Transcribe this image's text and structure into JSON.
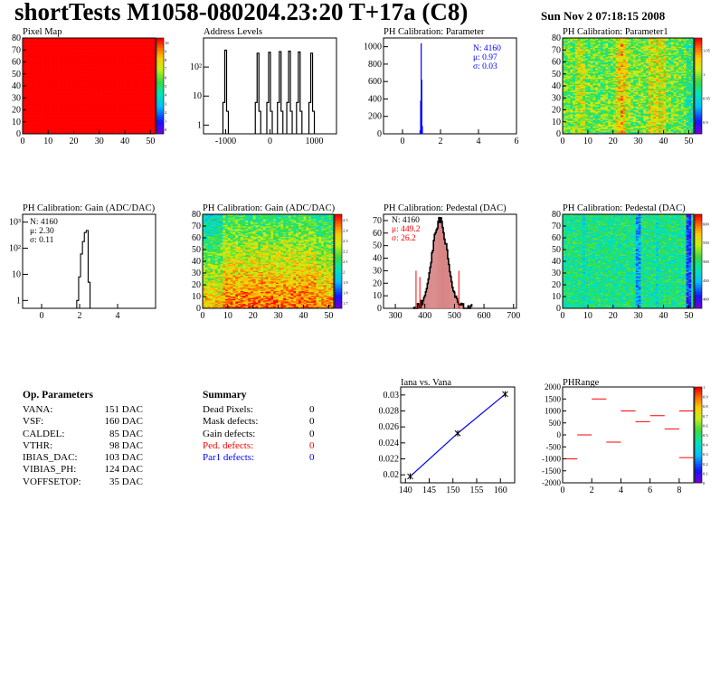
{
  "header": {
    "title": "shortTests M1058-080204.23:20 T+17a (C8)",
    "date": "Sun Nov  2 07:18:15 2008"
  },
  "colors": {
    "red": "#ff0000",
    "blue": "#0000ff",
    "hist_fill_red": "#c04040"
  },
  "chart_data": [
    {
      "id": "pixel-map",
      "type": "heatmap",
      "title": "Pixel Map",
      "xlim": [
        0,
        52
      ],
      "ylim": [
        0,
        80
      ],
      "xticks": [
        0,
        10,
        20,
        30,
        40,
        50
      ],
      "yticks": [
        0,
        10,
        20,
        30,
        40,
        50,
        60,
        70,
        80
      ],
      "fill_value": 10,
      "zlim": [
        0,
        10
      ],
      "z_tick_labels": [
        "0",
        "1",
        "2",
        "3",
        "4",
        "5",
        "6",
        "7",
        "8",
        "9",
        "10"
      ]
    },
    {
      "id": "address-levels",
      "type": "bar",
      "title": "Address Levels",
      "log_y": true,
      "xlim": [
        -1500,
        1500
      ],
      "ylim_exp": [
        -0.3,
        3
      ],
      "xtick_labels": [
        {
          "v": -1000,
          "label": "-1000"
        },
        {
          "v": 0,
          "label": "0"
        },
        {
          "v": 1000,
          "label": "1000"
        }
      ],
      "ytick_labels": [
        {
          "e": 0,
          "label": "1"
        },
        {
          "e": 1,
          "label": "10"
        },
        {
          "e": 2,
          "label": "10²"
        }
      ],
      "peaks": [
        {
          "x": -980,
          "y": 380
        },
        {
          "x": -250,
          "y": 300
        },
        {
          "x": 10,
          "y": 320
        },
        {
          "x": 250,
          "y": 340
        },
        {
          "x": 460,
          "y": 350
        },
        {
          "x": 680,
          "y": 330
        },
        {
          "x": 960,
          "y": 300
        }
      ]
    },
    {
      "id": "ph-cal-parameter",
      "type": "bar",
      "title": "PH Calibration: Parameter",
      "xlim": [
        -1,
        6
      ],
      "ylim": [
        0,
        1100
      ],
      "xtick_labels": [
        {
          "v": 0,
          "label": "0"
        },
        {
          "v": 2,
          "label": "2"
        },
        {
          "v": 4,
          "label": "4"
        },
        {
          "v": 6,
          "label": "6"
        }
      ],
      "ytick_labels": [
        {
          "v": 0,
          "label": "0"
        },
        {
          "v": 200,
          "label": "200"
        },
        {
          "v": 400,
          "label": "400"
        },
        {
          "v": 600,
          "label": "600"
        },
        {
          "v": 800,
          "label": "800"
        },
        {
          "v": 1000,
          "label": "1000"
        }
      ],
      "stats": [
        "N: 4160",
        "μ: 0.97",
        "σ: 0.03"
      ],
      "bins": [
        {
          "x": 0.92,
          "y": 40
        },
        {
          "x": 0.95,
          "y": 380
        },
        {
          "x": 0.98,
          "y": 1040
        },
        {
          "x": 1.01,
          "y": 620
        },
        {
          "x": 1.04,
          "y": 90
        }
      ]
    },
    {
      "id": "ph-cal-parameter1",
      "type": "heatmap",
      "title": "PH Calibration: Parameter1",
      "xlim": [
        0,
        52
      ],
      "ylim": [
        0,
        80
      ],
      "xticks": [
        0,
        10,
        20,
        30,
        40,
        50
      ],
      "yticks": [
        0,
        10,
        20,
        30,
        40,
        50,
        60,
        70,
        80
      ],
      "z_tick_labels": [
        "0.9",
        "0.95",
        "1",
        "1.05"
      ]
    },
    {
      "id": "ph-cal-gain-1d",
      "type": "bar",
      "title": "PH Calibration: Gain (ADC/DAC)",
      "log_y": true,
      "xlim": [
        -1,
        6
      ],
      "ylim_exp": [
        -0.3,
        3.3
      ],
      "xtick_labels": [
        {
          "v": 0,
          "label": "0"
        },
        {
          "v": 2,
          "label": "2"
        },
        {
          "v": 4,
          "label": "4"
        }
      ],
      "ytick_labels": [
        {
          "e": 0,
          "label": "1"
        },
        {
          "e": 1,
          "label": "10"
        },
        {
          "e": 2,
          "label": "10²"
        },
        {
          "e": 3,
          "label": "10³"
        }
      ],
      "stats": [
        "N: 4160",
        "μ: 2.30",
        "σ: 0.11"
      ],
      "bins": [
        {
          "x": 1.9,
          "y": 1
        },
        {
          "x": 2.0,
          "y": 8
        },
        {
          "x": 2.1,
          "y": 60
        },
        {
          "x": 2.2,
          "y": 180
        },
        {
          "x": 2.3,
          "y": 400
        },
        {
          "x": 2.4,
          "y": 480
        },
        {
          "x": 2.5,
          "y": 5
        }
      ]
    },
    {
      "id": "ph-cal-gain-2d",
      "type": "heatmap",
      "title": "PH Calibration: Gain (ADC/DAC)",
      "xlim": [
        0,
        52
      ],
      "ylim": [
        0,
        80
      ],
      "xticks": [
        0,
        10,
        20,
        30,
        40,
        50
      ],
      "yticks": [
        0,
        10,
        20,
        30,
        40,
        50,
        60,
        70,
        80
      ],
      "z_tick_labels": [
        "1.7",
        "1.8",
        "1.9",
        "2",
        "2.1",
        "2.2",
        "2.3",
        "2.4",
        "2.5"
      ]
    },
    {
      "id": "ph-cal-pedestal-1d",
      "type": "bar",
      "title": "PH Calibration: Pedestal (DAC)",
      "xlim": [
        260,
        710
      ],
      "ylim": [
        0,
        75
      ],
      "xtick_labels": [
        {
          "v": 300,
          "label": "300"
        },
        {
          "v": 400,
          "label": "400"
        },
        {
          "v": 500,
          "label": "500"
        },
        {
          "v": 600,
          "label": "600"
        },
        {
          "v": 700,
          "label": "700"
        }
      ],
      "ytick_labels": [
        {
          "v": 0,
          "label": "0"
        },
        {
          "v": 10,
          "label": "10"
        },
        {
          "v": 20,
          "label": "20"
        },
        {
          "v": 30,
          "label": "30"
        },
        {
          "v": 40,
          "label": "40"
        },
        {
          "v": 50,
          "label": "50"
        },
        {
          "v": 60,
          "label": "60"
        },
        {
          "v": 70,
          "label": "70"
        }
      ],
      "stats_black": [
        "N: 4160"
      ],
      "stats_red": [
        "μ: 449.2",
        "σ: 26.2"
      ],
      "cut_lines": [
        370,
        383,
        515
      ],
      "gauss": {
        "mean": 449,
        "sigma": 26,
        "peak": 70
      }
    },
    {
      "id": "ph-cal-pedestal-2d",
      "type": "heatmap",
      "title": "PH Calibration: Pedestal (DAC)",
      "xlim": [
        0,
        52
      ],
      "ylim": [
        0,
        80
      ],
      "xticks": [
        0,
        10,
        20,
        30,
        40,
        50
      ],
      "yticks": [
        0,
        10,
        20,
        30,
        40,
        50,
        60,
        70,
        80
      ],
      "z_tick_labels": [
        "400",
        "450",
        "500",
        "550",
        "600"
      ]
    },
    {
      "id": "iana-vs-vana",
      "type": "line",
      "title": "Iana vs. Vana",
      "xlim": [
        139,
        163
      ],
      "ylim": [
        0.019,
        0.031
      ],
      "xtick_labels": [
        {
          "v": 140,
          "label": "140"
        },
        {
          "v": 145,
          "label": "145"
        },
        {
          "v": 150,
          "label": "150"
        },
        {
          "v": 155,
          "label": "155"
        },
        {
          "v": 160,
          "label": "160"
        }
      ],
      "ytick_labels": [
        {
          "v": 0.02,
          "label": "0.02"
        },
        {
          "v": 0.022,
          "label": "0.022"
        },
        {
          "v": 0.024,
          "label": "0.024"
        },
        {
          "v": 0.026,
          "label": "0.026"
        },
        {
          "v": 0.028,
          "label": "0.028"
        },
        {
          "v": 0.03,
          "label": "0.03"
        }
      ],
      "points": [
        {
          "x": 141,
          "y": 0.0198
        },
        {
          "x": 151,
          "y": 0.0252
        },
        {
          "x": 161,
          "y": 0.0301
        }
      ]
    },
    {
      "id": "phrange",
      "type": "scatter",
      "title": "PHRange",
      "xlim": [
        0,
        9
      ],
      "ylim": [
        -2000,
        2000
      ],
      "xtick_labels": [
        {
          "v": 0,
          "label": "0"
        },
        {
          "v": 2,
          "label": "2"
        },
        {
          "v": 4,
          "label": "4"
        },
        {
          "v": 6,
          "label": "6"
        },
        {
          "v": 8,
          "label": "8"
        }
      ],
      "ytick_labels": [
        {
          "v": 2000,
          "label": "2000"
        },
        {
          "v": 1500,
          "label": "1500"
        },
        {
          "v": 1000,
          "label": "1000"
        },
        {
          "v": 500,
          "label": "500"
        },
        {
          "v": 0,
          "label": "0"
        },
        {
          "v": -500,
          "label": "-500"
        },
        {
          "v": -1000,
          "label": "-1000"
        },
        {
          "v": -1500,
          "label": "-1500"
        },
        {
          "v": -2000,
          "label": "-2000"
        }
      ],
      "z_tick_labels": [
        "0",
        "0.1",
        "0.2",
        "0.3",
        "0.4",
        "0.5",
        "0.6",
        "0.7",
        "0.8",
        "0.9",
        "1"
      ],
      "segments": [
        {
          "x": 0,
          "y": -1000
        },
        {
          "x": 1,
          "y": 0
        },
        {
          "x": 2,
          "y": 1500
        },
        {
          "x": 3,
          "y": -300
        },
        {
          "x": 4,
          "y": 1000
        },
        {
          "x": 5,
          "y": 550
        },
        {
          "x": 6,
          "y": 800
        },
        {
          "x": 7,
          "y": 250
        },
        {
          "x": 8,
          "y": 1000
        },
        {
          "x": 8,
          "y": -950
        }
      ]
    }
  ],
  "op_parameters": {
    "heading": "Op. Parameters",
    "rows": [
      {
        "name": "VANA:",
        "value": "151 DAC"
      },
      {
        "name": "VSF:",
        "value": "160 DAC"
      },
      {
        "name": "CALDEL:",
        "value": "85 DAC"
      },
      {
        "name": "VTHR:",
        "value": "98 DAC"
      },
      {
        "name": "IBIAS_DAC:",
        "value": "103 DAC"
      },
      {
        "name": "VIBIAS_PH:",
        "value": "124 DAC"
      },
      {
        "name": "VOFFSETOP:",
        "value": "35 DAC"
      }
    ]
  },
  "summary": {
    "heading": "Summary",
    "rows": [
      {
        "name": "Dead Pixels:",
        "value": "0",
        "color": "#000000"
      },
      {
        "name": "Mask defects:",
        "value": "0",
        "color": "#000000"
      },
      {
        "name": "Gain defects:",
        "value": "0",
        "color": "#000000"
      },
      {
        "name": "Ped. defects:",
        "value": "0",
        "color": "#ff0000"
      },
      {
        "name": "Par1 defects:",
        "value": "0",
        "color": "#0000ff"
      }
    ]
  }
}
